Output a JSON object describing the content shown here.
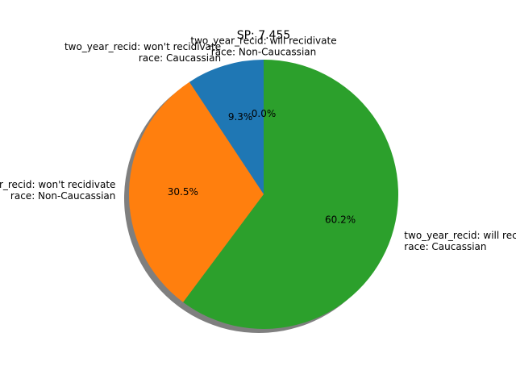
{
  "chart_data": {
    "type": "pie",
    "title": "SP: 7.455",
    "slices": [
      {
        "label_lines": [
          "two_year_recid: will recidivate",
          "race: Non-Caucassian"
        ],
        "value": 0.0,
        "pct_label": "0.0%",
        "color": "#d62728"
      },
      {
        "label_lines": [
          "two_year_recid: won't recidivate",
          "race: Caucassian"
        ],
        "value": 9.3,
        "pct_label": "9.3%",
        "color": "#1f77b4"
      },
      {
        "label_lines": [
          "two_year_recid: won't recidivate",
          "race: Non-Caucassian"
        ],
        "value": 30.5,
        "pct_label": "30.5%",
        "color": "#ff7f0e"
      },
      {
        "label_lines": [
          "two_year_recid: will recidivate",
          "race: Caucassian"
        ],
        "value": 60.2,
        "pct_label": "60.2%",
        "color": "#2ca02c"
      }
    ],
    "start_angle": 90,
    "shadow": true
  }
}
